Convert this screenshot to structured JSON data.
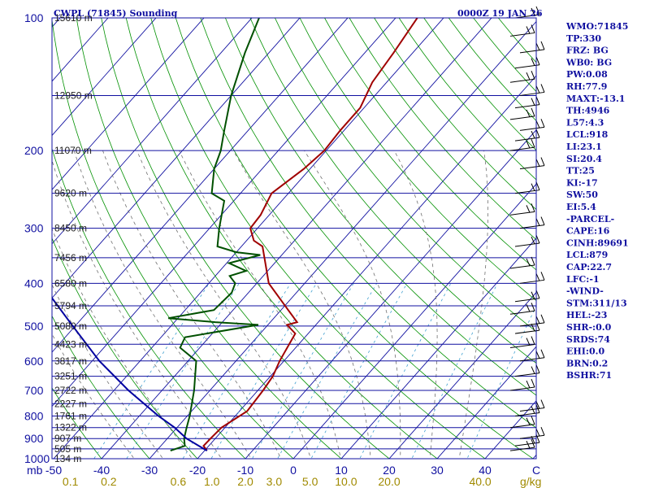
{
  "header": {
    "left": "CWPL (71845) Sounding",
    "right": "0000Z 19 JAN 26"
  },
  "chart_data": {
    "type": "line",
    "title": "CWPL (71845) Sounding",
    "valid_time": "0000Z 19 JAN 26",
    "y_axis": {
      "unit": "mb",
      "scale": "log",
      "range": [
        1000,
        100
      ],
      "ticks": [
        100,
        200,
        300,
        400,
        500,
        600,
        700,
        800,
        900,
        1000
      ]
    },
    "x_axis": {
      "unit": "C",
      "range": [
        -50,
        50
      ],
      "ticks": [
        -50,
        -40,
        -30,
        -20,
        -10,
        0,
        10,
        20,
        30,
        40
      ],
      "tick_labels": [
        "-50",
        "-40",
        "-30",
        "-20",
        "-10",
        "0",
        "10",
        "20",
        "30",
        "40"
      ],
      "skew": true,
      "unit_label": "C",
      "left_label": "mb"
    },
    "mixing_ratio_axis": {
      "unit": "g/kg",
      "labels": [
        "0.1",
        "0.2",
        "0.6",
        "1.0",
        "2.0",
        "3.0",
        "5.0",
        "10.0",
        "20.0",
        "40.0"
      ],
      "label_temps_at_bottom": [
        -46.5,
        -38.5,
        -24,
        -17,
        -10,
        -4,
        3.5,
        11,
        20,
        39
      ]
    },
    "height_labels": [
      {
        "p": 100,
        "text": "15610 m"
      },
      {
        "p": 150,
        "text": "12950 m"
      },
      {
        "p": 200,
        "text": "11070 m"
      },
      {
        "p": 250,
        "text": "9620 m"
      },
      {
        "p": 300,
        "text": "8450 m"
      },
      {
        "p": 350,
        "text": "7456 m"
      },
      {
        "p": 400,
        "text": "6580 m"
      },
      {
        "p": 450,
        "text": "5794 m"
      },
      {
        "p": 500,
        "text": "5080 m"
      },
      {
        "p": 550,
        "text": "4423 m"
      },
      {
        "p": 600,
        "text": "3817 m"
      },
      {
        "p": 650,
        "text": "3251 m"
      },
      {
        "p": 700,
        "text": "2722 m"
      },
      {
        "p": 750,
        "text": "2227 m"
      },
      {
        "p": 800,
        "text": "1761 m"
      },
      {
        "p": 850,
        "text": "1322 m"
      },
      {
        "p": 900,
        "text": "907 m"
      },
      {
        "p": 950,
        "text": "505 m"
      },
      {
        "p": 1000,
        "text": "134 m"
      }
    ],
    "series": [
      {
        "name": "Temperature",
        "color": "#a00000",
        "points": [
          [
            959,
            -19.5
          ],
          [
            935,
            -21.1
          ],
          [
            900,
            -21.0
          ],
          [
            850,
            -20.7
          ],
          [
            780,
            -18.4
          ],
          [
            700,
            -18.9
          ],
          [
            650,
            -19.5
          ],
          [
            600,
            -20.9
          ],
          [
            520,
            -22.7
          ],
          [
            497,
            -26.0
          ],
          [
            490,
            -24.4
          ],
          [
            460,
            -28.5
          ],
          [
            400,
            -37.5
          ],
          [
            330,
            -45.6
          ],
          [
            320,
            -48.5
          ],
          [
            300,
            -51.5
          ],
          [
            280,
            -51.8
          ],
          [
            250,
            -53.5
          ],
          [
            220,
            -51.3
          ],
          [
            200,
            -50.4
          ],
          [
            180,
            -50.8
          ],
          [
            160,
            -50.8
          ],
          [
            140,
            -53.0
          ],
          [
            120,
            -54.0
          ],
          [
            100,
            -55.5
          ]
        ]
      },
      {
        "name": "Dewpoint",
        "color": "#005000",
        "points": [
          [
            959,
            -27.1
          ],
          [
            935,
            -25.0
          ],
          [
            900,
            -26.5
          ],
          [
            850,
            -28.0
          ],
          [
            800,
            -29.5
          ],
          [
            700,
            -33.3
          ],
          [
            600,
            -38.3
          ],
          [
            560,
            -44.1
          ],
          [
            530,
            -45.0
          ],
          [
            497,
            -32.0
          ],
          [
            490,
            -41.5
          ],
          [
            480,
            -52.0
          ],
          [
            460,
            -44.0
          ],
          [
            420,
            -43.5
          ],
          [
            400,
            -44.5
          ],
          [
            385,
            -47.0
          ],
          [
            375,
            -44.5
          ],
          [
            360,
            -49.5
          ],
          [
            345,
            -44.5
          ],
          [
            340,
            -50.0
          ],
          [
            330,
            -55.0
          ],
          [
            300,
            -58.0
          ],
          [
            260,
            -62.0
          ],
          [
            250,
            -66.0
          ],
          [
            220,
            -70.0
          ],
          [
            200,
            -72.0
          ],
          [
            180,
            -75.0
          ],
          [
            150,
            -80.0
          ],
          [
            120,
            -85.0
          ],
          [
            100,
            -88.5
          ]
        ]
      },
      {
        "name": "Parcel",
        "color": "#0000a0",
        "points": [
          [
            959,
            -19.5
          ],
          [
            900,
            -26.0
          ],
          [
            850,
            -30.5
          ],
          [
            800,
            -36.0
          ],
          [
            700,
            -47.0
          ],
          [
            600,
            -58.5
          ],
          [
            500,
            -70.5
          ],
          [
            400,
            -85.0
          ],
          [
            300,
            -100.5
          ],
          [
            250,
            -110.0
          ],
          [
            200,
            -119.5
          ],
          [
            150,
            -131.0
          ],
          [
            120,
            -137.0
          ]
        ]
      }
    ],
    "wind_barbs": {
      "color": "#000000",
      "pressures": [
        959,
        935,
        900,
        850,
        800,
        780,
        700,
        650,
        600,
        560,
        520,
        500,
        470,
        440,
        400,
        370,
        330,
        300,
        280,
        250,
        220,
        200,
        190,
        180,
        170,
        160,
        150,
        140,
        130,
        120,
        110,
        100
      ]
    },
    "grid": true,
    "colors": {
      "isobar": "#1010a0",
      "isotherm": "#1010a0",
      "dry_adiabat": "#009000",
      "moist_adiabat": "#707070",
      "mixing_ratio": "#40a0d0"
    }
  },
  "indices": [
    "WMO:71845",
    "TP:330",
    "FRZ: BG",
    "WB0: BG",
    "PW:0.08",
    "RH:77.9",
    "MAXT:-13.1",
    "TH:4946",
    "L57:4.3",
    "LCL:918",
    "LI:23.1",
    "SI:20.4",
    "TT:25",
    "KI:-17",
    "SW:50",
    "EI:5.4",
    "-PARCEL-",
    "CAPE:16",
    "CINH:89691",
    "LCL:879",
    "CAP:22.7",
    "LFC:-1",
    "-WIND-",
    "STM:311/13",
    "HEL:-23",
    "SHR-:0.0",
    "SRDS:74",
    "EHI:0.0",
    "BRN:0.2",
    "BSHR:71"
  ]
}
